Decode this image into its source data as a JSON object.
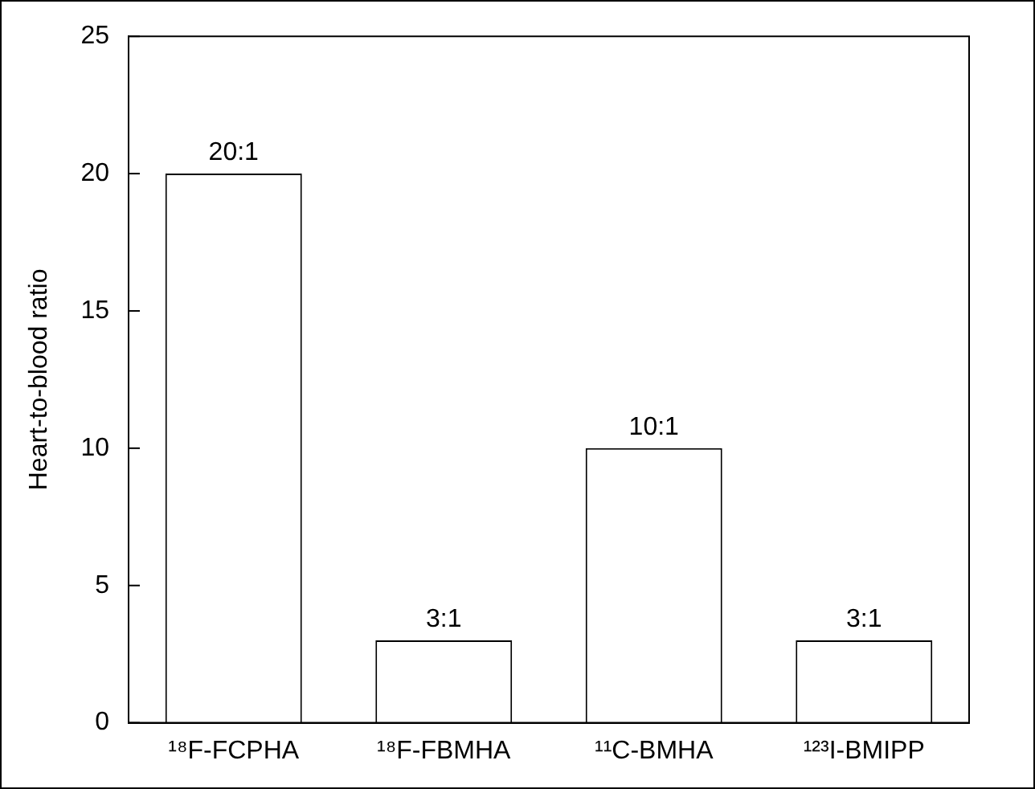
{
  "chart_data": {
    "type": "bar",
    "ylabel": "Heart-to-blood ratio",
    "categories": [
      "¹⁸F-FCPHA",
      "¹⁸F-FBMHA",
      "¹¹C-BMHA",
      "¹²³I-BMIPP"
    ],
    "values": [
      20,
      3,
      10,
      3
    ],
    "value_labels": [
      "20:1",
      "3:1",
      "10:1",
      "3:1"
    ],
    "color": "#ffffff",
    "ylim": [
      0,
      25
    ],
    "yticks": [
      0,
      5,
      10,
      15,
      20,
      25
    ],
    "grid": false,
    "legend": false
  }
}
